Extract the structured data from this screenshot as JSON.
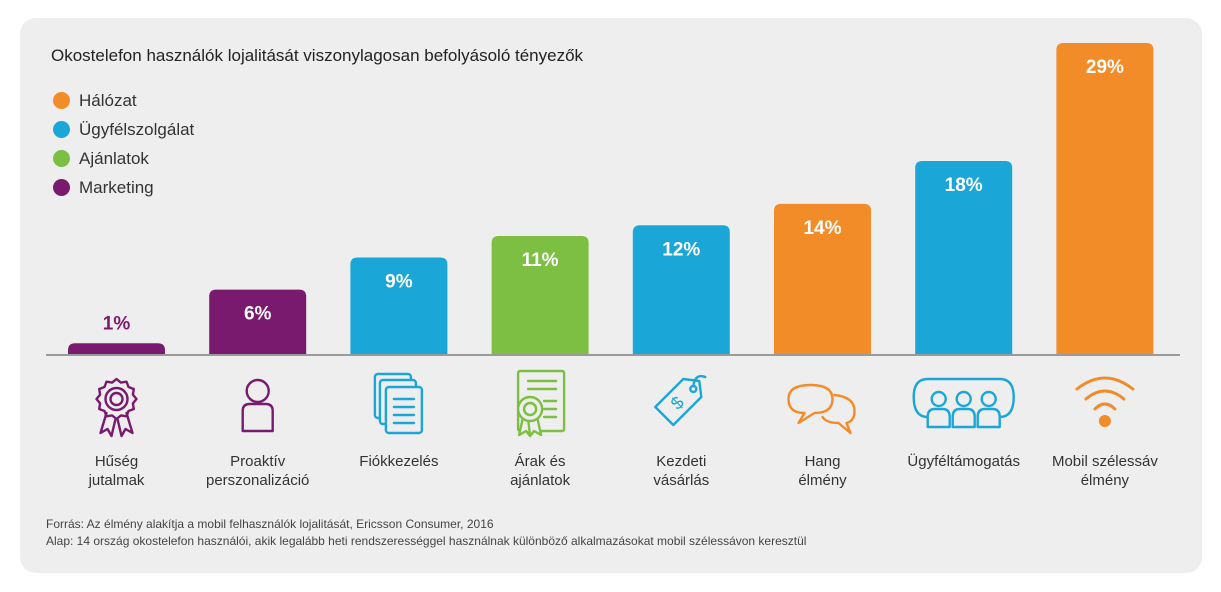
{
  "title": "Okostelefon használók lojalitását viszonylagosan befolyásoló tényezők",
  "legend": [
    {
      "label": "Hálózat",
      "color": "#f28c28"
    },
    {
      "label": "Ügyfélszolgálat",
      "color": "#1aa7d8"
    },
    {
      "label": "Ajánlatok",
      "color": "#7cbf42"
    },
    {
      "label": "Marketing",
      "color": "#7a1a6f"
    }
  ],
  "chart_data": {
    "type": "bar",
    "title": "Okostelefon használók lojalitását viszonylagosan befolyásoló tényezők",
    "categories": [
      "Hűség\njutalmak",
      "Proaktív\nperszonalizáció",
      "Fiókkezelés",
      "Árak és\najánlatok",
      "Kezdeti\nvásárlás",
      "Hang\nélmény",
      "Ügyféltámogatás",
      "Mobil szélessáv\nélmény"
    ],
    "values": [
      1,
      6,
      9,
      11,
      12,
      14,
      18,
      29
    ],
    "value_labels": [
      "1%",
      "6%",
      "9%",
      "11%",
      "12%",
      "14%",
      "18%",
      "29%"
    ],
    "groups": [
      "Marketing",
      "Marketing",
      "Ügyfélszolgálat",
      "Ajánlatok",
      "Ügyfélszolgálat",
      "Hálózat",
      "Ügyfélszolgálat",
      "Hálózat"
    ],
    "icons": [
      "ribbon-award-icon",
      "person-icon",
      "documents-icon",
      "certificate-icon",
      "price-tag-icon",
      "speech-bubbles-icon",
      "group-people-icon",
      "wifi-icon"
    ],
    "ylim": [
      0,
      29
    ],
    "unit": "%",
    "legend_position": "top-left"
  },
  "footer": {
    "source": "Forrás: Az élmény alakítja a mobil felhasználók lojalitását, Ericsson Consumer, 2016",
    "base": "Alap: 14 ország okostelefon használói, akik legalább heti rendszerességgel használnak különböző alkalmazásokat mobil szélessávon keresztül"
  }
}
